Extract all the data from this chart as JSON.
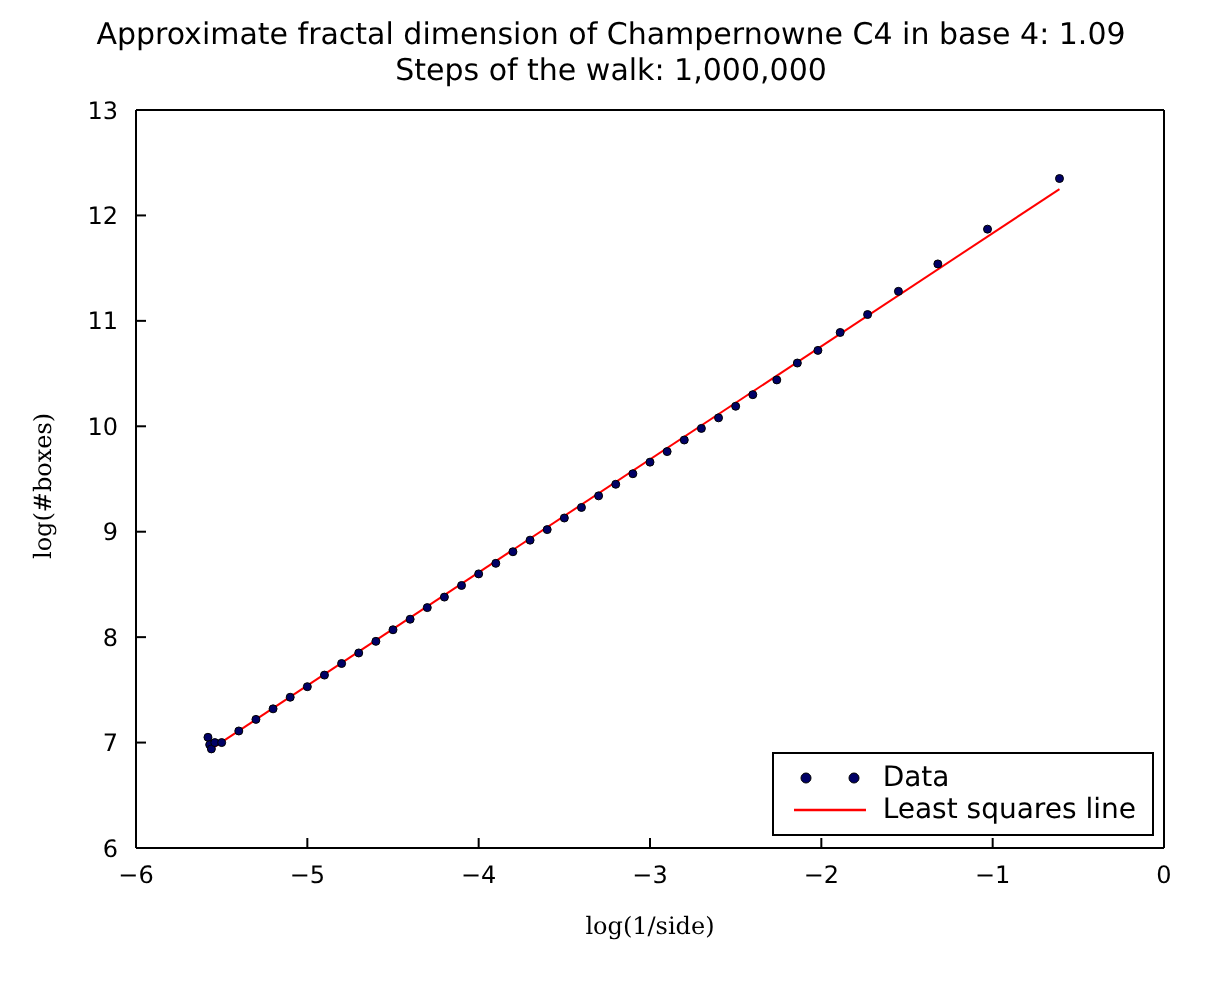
{
  "chart_data": {
    "type": "scatter",
    "title": "Approximate fractal dimension of Champernowne C4 in base 4: 1.09",
    "subtitle": "Steps of the walk: 1,000,000",
    "xlabel": "log(1/side)",
    "ylabel": "log(#boxes)",
    "xlim": [
      -6,
      0
    ],
    "ylim": [
      6,
      13
    ],
    "xticks": [
      -6,
      -5,
      -4,
      -3,
      -2,
      -1,
      0
    ],
    "yticks": [
      6,
      7,
      8,
      9,
      10,
      11,
      12,
      13
    ],
    "grid": false,
    "legend": "bottom right",
    "series": [
      {
        "name": "Data",
        "marker": "circle",
        "color": "#000066",
        "x": [
          -5.58,
          -5.57,
          -5.56,
          -5.54,
          -5.5,
          -5.4,
          -5.3,
          -5.2,
          -5.1,
          -5.0,
          -4.9,
          -4.8,
          -4.7,
          -4.6,
          -4.5,
          -4.4,
          -4.3,
          -4.2,
          -4.1,
          -4.0,
          -3.9,
          -3.8,
          -3.7,
          -3.6,
          -3.5,
          -3.4,
          -3.3,
          -3.2,
          -3.1,
          -3.0,
          -2.9,
          -2.8,
          -2.7,
          -2.6,
          -2.5,
          -2.4,
          -2.26,
          -2.14,
          -2.02,
          -1.89,
          -1.73,
          -1.55,
          -1.32,
          -1.03,
          -0.61
        ],
        "values": [
          7.05,
          6.98,
          6.94,
          7.0,
          7.0,
          7.11,
          7.22,
          7.32,
          7.43,
          7.53,
          7.64,
          7.75,
          7.85,
          7.96,
          8.07,
          8.17,
          8.28,
          8.38,
          8.49,
          8.6,
          8.7,
          8.81,
          8.92,
          9.02,
          9.13,
          9.23,
          9.34,
          9.45,
          9.55,
          9.66,
          9.76,
          9.87,
          9.98,
          10.08,
          10.19,
          10.3,
          10.44,
          10.6,
          10.72,
          10.89,
          11.06,
          11.28,
          11.54,
          11.87,
          12.35
        ]
      },
      {
        "name": "Least squares line",
        "type": "line",
        "marker": "none",
        "line_style": "solid",
        "color": "#ff0000",
        "x": [
          -5.56,
          -0.61
        ],
        "values": [
          6.94,
          12.25
        ]
      }
    ]
  }
}
